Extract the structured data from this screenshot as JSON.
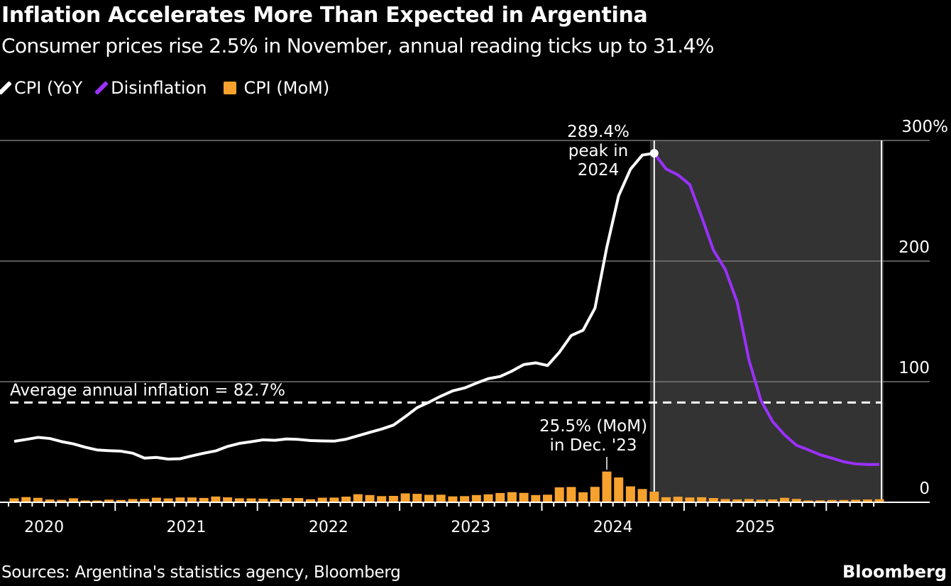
{
  "title": "Inflation Accelerates More Than Expected in Argentina",
  "subtitle": "Consumer prices rise 2.5% in November, annual reading ticks up to 31.4%",
  "legend": [
    {
      "label": "CPI (YoY",
      "color": "#ffffff",
      "shape": "line"
    },
    {
      "label": "Disinflation",
      "color": "#9b30ff",
      "shape": "line"
    },
    {
      "label": "CPI (MoM)",
      "color": "#f7a22e",
      "shape": "square"
    }
  ],
  "source": "Sources: Argentina's statistics agency, Bloomberg",
  "brand": "Bloomberg",
  "chart_data": {
    "type": "line",
    "title": "Inflation Accelerates More Than Expected in Argentina",
    "x_start": "2019-10",
    "x_end": "2025-11",
    "frequency": "monthly",
    "x_tick_labels": [
      "2020",
      "2021",
      "2022",
      "2023",
      "2024",
      "2025"
    ],
    "y_tick_labels": [
      "300%",
      "200",
      "100",
      "0"
    ],
    "ylim": [
      0,
      300
    ],
    "grid": true,
    "legend_position": "top-left",
    "shaded_region": {
      "start": "2024-04",
      "end": "2025-11",
      "color": "#333333"
    },
    "series": [
      {
        "name": "CPI (YoY",
        "type": "line",
        "color": "#ffffff",
        "values": [
          50.5,
          52.1,
          53.8,
          52.9,
          50.3,
          48.4,
          45.6,
          43.4,
          42.8,
          42.4,
          40.7,
          36.6,
          37.2,
          35.8,
          36.1,
          38.5,
          40.7,
          42.6,
          46.3,
          48.8,
          50.2,
          51.8,
          51.4,
          52.5,
          52.1,
          51.2,
          50.9,
          50.7,
          52.3,
          55.1,
          58.0,
          60.7,
          64.0,
          71.0,
          78.5,
          83.0,
          88.0,
          92.4,
          94.8,
          98.8,
          102.5,
          104.3,
          108.8,
          114.2,
          115.6,
          113.4,
          124.4,
          138.3,
          142.7,
          160.9,
          211.4,
          254.2,
          276.2,
          287.9,
          289.4
        ]
      },
      {
        "name": "Disinflation",
        "type": "line",
        "color": "#9b30ff",
        "start": "2024-04",
        "values": [
          289.4,
          276.4,
          271.5,
          263.4,
          236.7,
          209.0,
          193.0,
          166.0,
          117.8,
          84.5,
          66.9,
          55.9,
          47.3,
          43.5,
          39.4,
          36.6,
          33.6,
          31.8,
          31.3,
          31.4
        ]
      },
      {
        "name": "CPI (MoM)",
        "type": "bar",
        "color": "#f7a22e",
        "values": [
          3.3,
          4.3,
          3.7,
          2.3,
          2.0,
          3.3,
          1.5,
          1.5,
          2.2,
          1.9,
          2.7,
          2.8,
          3.8,
          3.2,
          4.0,
          4.0,
          3.6,
          4.8,
          4.1,
          3.3,
          3.2,
          3.0,
          2.5,
          3.5,
          3.5,
          2.5,
          3.8,
          3.9,
          4.7,
          6.7,
          6.0,
          5.1,
          5.3,
          7.4,
          7.0,
          6.2,
          6.3,
          4.9,
          5.1,
          6.0,
          6.6,
          7.7,
          8.4,
          7.8,
          6.0,
          6.3,
          12.4,
          12.7,
          8.3,
          12.8,
          25.5,
          20.6,
          13.2,
          11.0,
          8.8,
          4.2,
          4.6,
          4.0,
          4.2,
          3.5,
          2.7,
          2.4,
          2.7,
          2.2,
          2.4,
          3.7,
          2.8,
          1.5,
          1.6,
          1.9,
          1.9,
          2.1,
          2.3,
          2.5
        ]
      }
    ],
    "reference_line": {
      "value": 82.7,
      "label": "Average annual inflation = 82.7%"
    },
    "annotations": [
      {
        "text": [
          "289.4%",
          "peak in",
          "2024"
        ],
        "x": "2024-04",
        "y": 289.4
      },
      {
        "text": [
          "25.5% (MoM)",
          "in Dec. '23"
        ],
        "x": "2023-12",
        "y": 25.5
      }
    ]
  }
}
